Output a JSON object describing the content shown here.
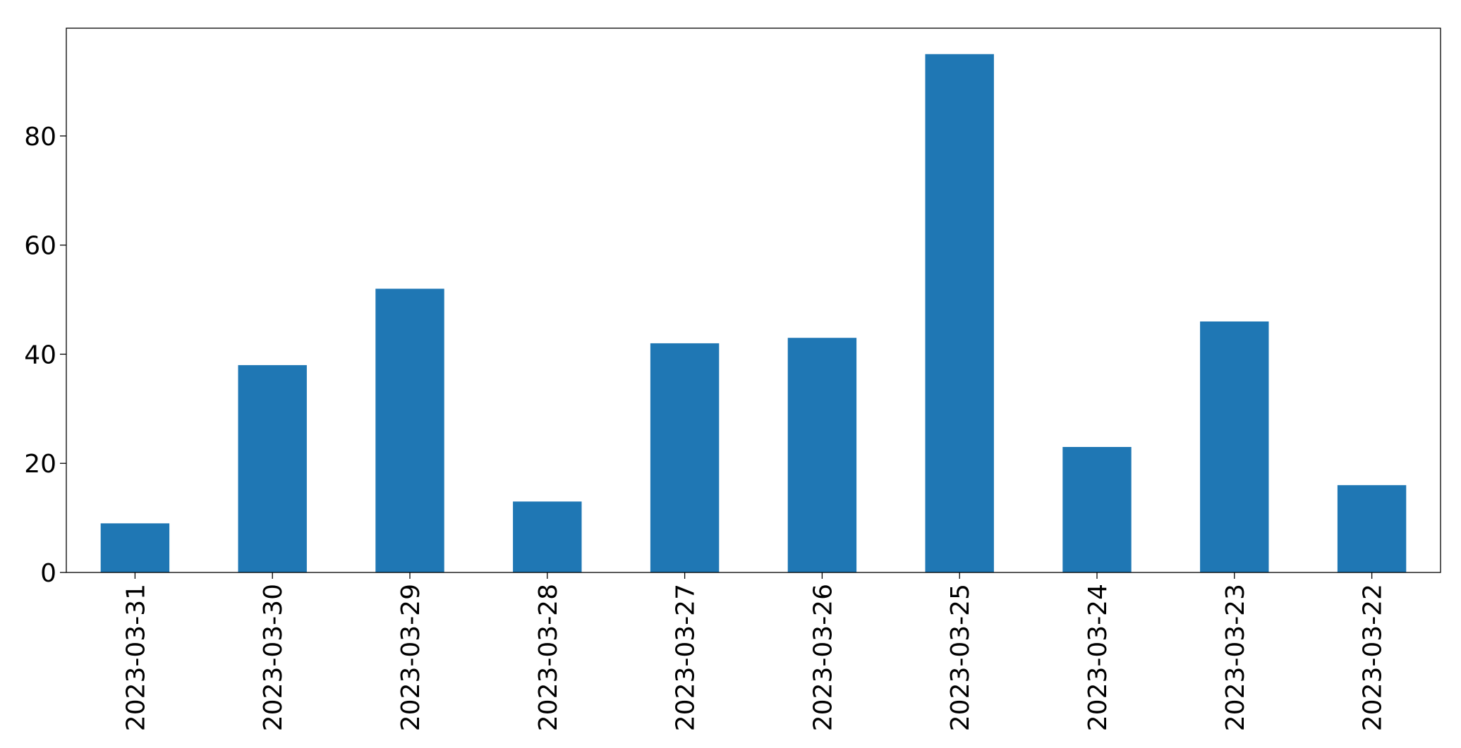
{
  "chart_data": {
    "type": "bar",
    "categories": [
      "2023-03-31",
      "2023-03-30",
      "2023-03-29",
      "2023-03-28",
      "2023-03-27",
      "2023-03-26",
      "2023-03-25",
      "2023-03-24",
      "2023-03-23",
      "2023-03-22"
    ],
    "values": [
      9,
      38,
      52,
      13,
      42,
      43,
      95,
      23,
      46,
      16
    ],
    "color": "#1f77b4",
    "ylim": [
      0,
      99.75
    ],
    "yticks": [
      0,
      20,
      40,
      60,
      80
    ],
    "grid": false
  }
}
